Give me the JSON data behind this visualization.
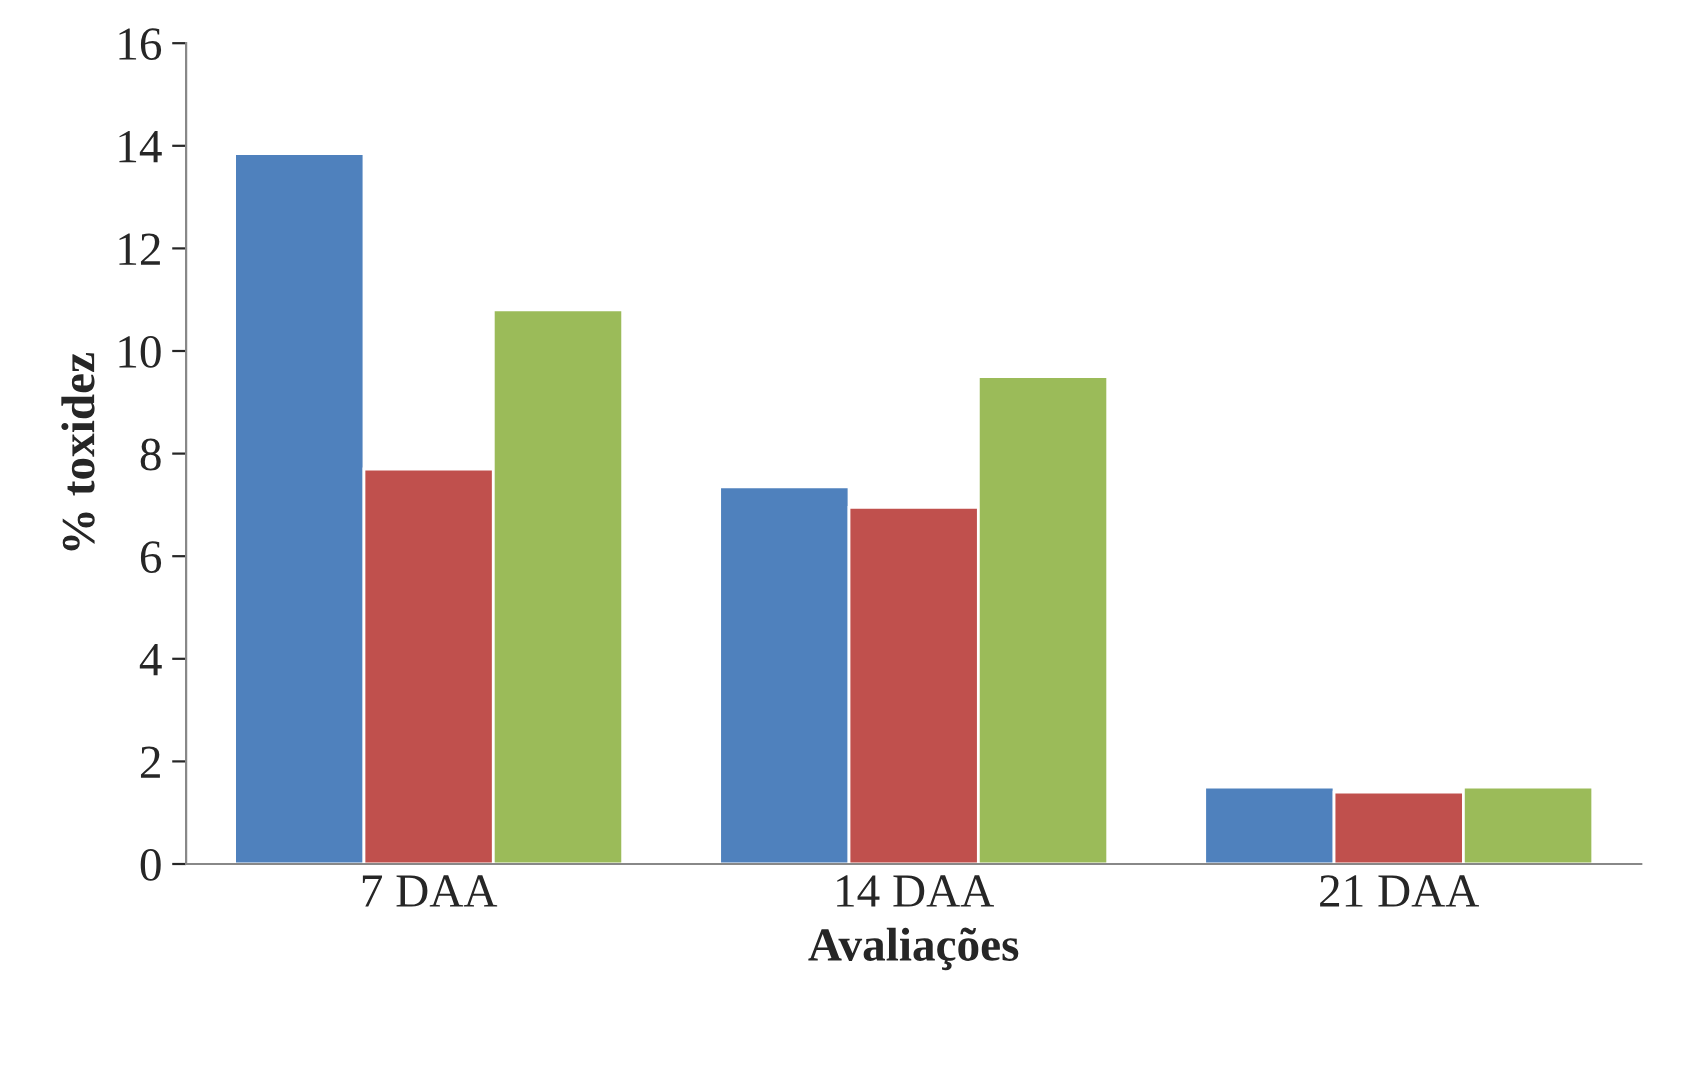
{
  "chart_data": {
    "type": "bar",
    "xlabel": "Avaliações",
    "ylabel": "% toxidez",
    "categories": [
      "7 DAA",
      "14 DAA",
      "21 DAA"
    ],
    "series": [
      {
        "color": "#4f81bd",
        "values": [
          13.85,
          7.35,
          1.5
        ]
      },
      {
        "color": "#c0504d",
        "values": [
          7.7,
          6.95,
          1.4
        ]
      },
      {
        "color": "#9bbb59",
        "values": [
          10.8,
          9.5,
          1.5
        ]
      }
    ],
    "ylim": [
      0,
      16
    ],
    "yticks": [
      0,
      2,
      4,
      6,
      8,
      10,
      12,
      14,
      16
    ],
    "grid": false
  }
}
